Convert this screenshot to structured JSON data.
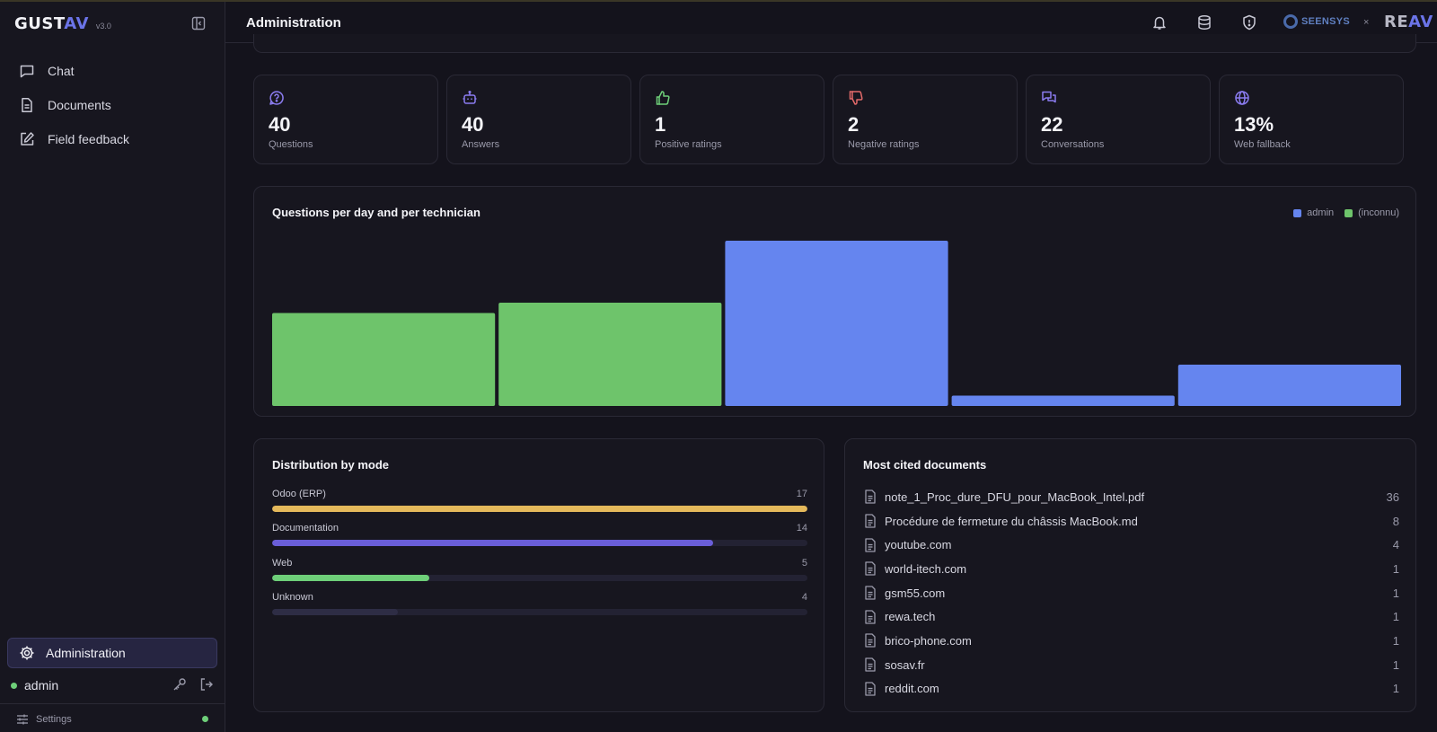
{
  "app": {
    "logo_text": "GUST",
    "logo_accent": "AV",
    "version": "v3.0"
  },
  "sidebar": {
    "items": [
      {
        "label": "Chat",
        "icon": "chat-icon"
      },
      {
        "label": "Documents",
        "icon": "document-icon"
      },
      {
        "label": "Field feedback",
        "icon": "edit-icon"
      }
    ],
    "admin_label": "Administration",
    "user": "admin",
    "settings_label": "Settings"
  },
  "header": {
    "title": "Administration",
    "icons": [
      "bell-icon",
      "database-icon",
      "shield-icon"
    ],
    "partner_1": "SEENSYS",
    "separator": "×",
    "partner_2": "RE",
    "partner_2_accent": "AV"
  },
  "kpis": [
    {
      "value": "40",
      "label": "Questions",
      "icon": "question-bubble-icon",
      "color": "#8b7cf0"
    },
    {
      "value": "40",
      "label": "Answers",
      "icon": "bot-icon",
      "color": "#8b7cf0"
    },
    {
      "value": "1",
      "label": "Positive ratings",
      "icon": "thumbs-up-icon",
      "color": "#6ecf79"
    },
    {
      "value": "2",
      "label": "Negative ratings",
      "icon": "thumbs-down-icon",
      "color": "#e46a6a"
    },
    {
      "value": "22",
      "label": "Conversations",
      "icon": "conversations-icon",
      "color": "#8b7cf0"
    },
    {
      "value": "13%",
      "label": "Web fallback",
      "icon": "globe-icon",
      "color": "#8b7cf0"
    }
  ],
  "chart_data": {
    "type": "bar",
    "title": "Questions per day and per technician",
    "legend_position": "top-right",
    "series": [
      {
        "name": "admin",
        "color": "#6585ef"
      },
      {
        "name": "(inconnu)",
        "color": "#6ec46b"
      }
    ],
    "bars": [
      {
        "series": "(inconnu)",
        "value": 9
      },
      {
        "series": "(inconnu)",
        "value": 10
      },
      {
        "series": "admin",
        "value": 16
      },
      {
        "series": "admin",
        "value": 1
      },
      {
        "series": "admin",
        "value": 4
      }
    ],
    "ylim": [
      0,
      16
    ],
    "grid": false
  },
  "distribution": {
    "title": "Distribution by mode",
    "rows": [
      {
        "label": "Odoo (ERP)",
        "value": 17,
        "fill": 1.0,
        "color": "#e5b95b"
      },
      {
        "label": "Documentation",
        "value": 14,
        "fill": 0.823,
        "color": "#6a5ed8"
      },
      {
        "label": "Web",
        "value": 5,
        "fill": 0.294,
        "color": "#6ecf79"
      },
      {
        "label": "Unknown",
        "value": 4,
        "fill": 0.235,
        "color": "#2e2d45"
      }
    ]
  },
  "docs": {
    "title": "Most cited documents",
    "rows": [
      {
        "name": "note_1_Proc_dure_DFU_pour_MacBook_Intel.pdf",
        "count": "36"
      },
      {
        "name": "Procédure de fermeture du châssis MacBook.md",
        "count": "8"
      },
      {
        "name": "youtube.com",
        "count": "4"
      },
      {
        "name": "world-itech.com",
        "count": "1"
      },
      {
        "name": "gsm55.com",
        "count": "1"
      },
      {
        "name": "rewa.tech",
        "count": "1"
      },
      {
        "name": "brico-phone.com",
        "count": "1"
      },
      {
        "name": "sosav.fr",
        "count": "1"
      },
      {
        "name": "reddit.com",
        "count": "1"
      }
    ]
  }
}
